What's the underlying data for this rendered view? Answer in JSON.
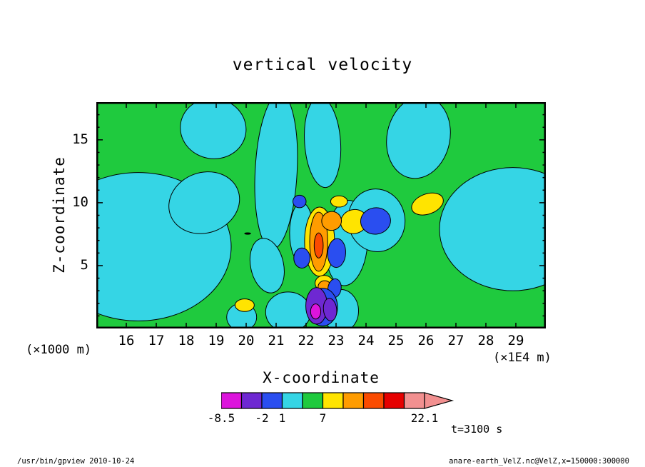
{
  "footer": {
    "left": "/usr/bin/gpview  2010-10-24",
    "right": "anare-earth_VelZ.nc@VelZ,x=150000:300000"
  },
  "chart_data": {
    "type": "heatmap",
    "subtype": "filled-contour-vertical-section",
    "title": "vertical velocity",
    "xlabel": "X-coordinate",
    "x_unit": "(×1E4 m)",
    "ylabel": "Z-coordinate",
    "y_unit": "(×1000 m)",
    "annotation_time": "t=3100 s",
    "xlim": [
      15,
      30
    ],
    "ylim": [
      0,
      18
    ],
    "x_ticks": [
      16,
      17,
      18,
      19,
      20,
      21,
      22,
      23,
      24,
      25,
      26,
      27,
      28,
      29
    ],
    "y_ticks": [
      5,
      10,
      15
    ],
    "contour_levels": [
      -8.5,
      -5,
      -2,
      1,
      4,
      7,
      10,
      13,
      16,
      19,
      22.1
    ],
    "field_background_color": "#1fca3e",
    "field_background_value_range": [
      4,
      7
    ],
    "colorbar": {
      "segments": [
        {
          "from": -8.5,
          "to": -5,
          "color": "#dc14dc"
        },
        {
          "from": -5,
          "to": -2,
          "color": "#6e28d2"
        },
        {
          "from": -2,
          "to": 1,
          "color": "#2a4ef0"
        },
        {
          "from": 1,
          "to": 4,
          "color": "#35d5e5"
        },
        {
          "from": 4,
          "to": 7,
          "color": "#1fca3e"
        },
        {
          "from": 7,
          "to": 10,
          "color": "#ffe400"
        },
        {
          "from": 10,
          "to": 13,
          "color": "#ff9c00"
        },
        {
          "from": 13,
          "to": 16,
          "color": "#fb4b00"
        },
        {
          "from": 16,
          "to": 19,
          "color": "#e60000"
        },
        {
          "from": 19,
          "to": 22.1,
          "color": "#f29090"
        }
      ],
      "arrow_color": "#f29090",
      "labels": [
        {
          "text": "-8.5",
          "frac": 0.0
        },
        {
          "text": "-2",
          "frac": 0.2
        },
        {
          "text": "1",
          "frac": 0.3
        },
        {
          "text": "7",
          "frac": 0.5
        },
        {
          "text": "22.1",
          "frac": 1.0
        }
      ]
    },
    "regions": [
      {
        "name": "cyan-left-flank",
        "color": "#35d5e5",
        "cx": 16.4,
        "cz": 6.5,
        "rx": 3.1,
        "rz": 5.9,
        "rot": 0
      },
      {
        "name": "cyan-left-upper",
        "color": "#35d5e5",
        "cx": 18.6,
        "cz": 10.0,
        "rx": 1.2,
        "rz": 2.4,
        "rot": -20
      },
      {
        "name": "cyan-top-left",
        "color": "#35d5e5",
        "cx": 18.9,
        "cz": 15.9,
        "rx": 1.1,
        "rz": 2.4,
        "rot": 10
      },
      {
        "name": "cyan-top-column",
        "color": "#35d5e5",
        "cx": 21.0,
        "cz": 12.5,
        "rx": 0.7,
        "rz": 6.2,
        "rot": 3
      },
      {
        "name": "cyan-column-tail",
        "color": "#35d5e5",
        "cx": 20.7,
        "cz": 5.0,
        "rx": 0.55,
        "rz": 2.2,
        "rot": -12
      },
      {
        "name": "cyan-top-column-2",
        "color": "#35d5e5",
        "cx": 22.55,
        "cz": 14.8,
        "rx": 0.6,
        "rz": 3.6,
        "rot": -4
      },
      {
        "name": "cyan-mid-column",
        "color": "#35d5e5",
        "cx": 23.35,
        "cz": 6.8,
        "rx": 0.7,
        "rz": 3.4,
        "rot": 4
      },
      {
        "name": "cyan-blue-halo",
        "color": "#35d5e5",
        "cx": 24.35,
        "cz": 8.6,
        "rx": 0.95,
        "rz": 2.5,
        "rot": -8
      },
      {
        "name": "cyan-top-right",
        "color": "#35d5e5",
        "cx": 25.75,
        "cz": 15.2,
        "rx": 1.05,
        "rz": 3.3,
        "rot": 12
      },
      {
        "name": "cyan-right-flank",
        "color": "#35d5e5",
        "cx": 28.9,
        "cz": 7.9,
        "rx": 2.45,
        "rz": 4.9,
        "rot": 0
      },
      {
        "name": "cyan-bottom-a",
        "color": "#35d5e5",
        "cx": 21.4,
        "cz": 1.3,
        "rx": 0.75,
        "rz": 1.6,
        "rot": 0
      },
      {
        "name": "cyan-bottom-b",
        "color": "#35d5e5",
        "cx": 23.15,
        "cz": 1.4,
        "rx": 0.6,
        "rz": 1.7,
        "rot": 0
      },
      {
        "name": "cyan-center-band",
        "color": "#35d5e5",
        "cx": 21.85,
        "cz": 7.6,
        "rx": 0.4,
        "rz": 2.4,
        "rot": 0
      },
      {
        "name": "cyan-bottom-c",
        "color": "#35d5e5",
        "cx": 19.85,
        "cz": 0.9,
        "rx": 0.5,
        "rz": 1.1,
        "rot": 0
      },
      {
        "name": "yellow-column-halo",
        "color": "#ffe400",
        "cx": 22.45,
        "cz": 6.9,
        "rx": 0.5,
        "rz": 2.75,
        "rot": 0
      },
      {
        "name": "yellow-right-patch",
        "color": "#ffe400",
        "cx": 23.6,
        "cz": 8.5,
        "rx": 0.45,
        "rz": 0.95,
        "rot": -15
      },
      {
        "name": "yellow-lone-ellipse",
        "color": "#ffe400",
        "cx": 26.05,
        "cz": 9.9,
        "rx": 0.55,
        "rz": 0.8,
        "rot": -20
      },
      {
        "name": "yellow-small-left",
        "color": "#ffe400",
        "cx": 19.95,
        "cz": 1.85,
        "rx": 0.32,
        "rz": 0.5,
        "rot": 0
      },
      {
        "name": "yellow-small-upper",
        "color": "#ffe400",
        "cx": 23.1,
        "cz": 10.1,
        "rx": 0.28,
        "rz": 0.45,
        "rot": 0
      },
      {
        "name": "yellow-small-lower",
        "color": "#ffe400",
        "cx": 22.6,
        "cz": 3.6,
        "rx": 0.3,
        "rz": 0.62,
        "rot": 0
      },
      {
        "name": "orange-column",
        "color": "#ff9c00",
        "cx": 22.42,
        "cz": 6.9,
        "rx": 0.3,
        "rz": 2.35,
        "rot": 0
      },
      {
        "name": "orange-bump",
        "color": "#ff9c00",
        "cx": 22.85,
        "cz": 8.55,
        "rx": 0.33,
        "rz": 0.75,
        "rot": -10
      },
      {
        "name": "orange-lower",
        "color": "#ff9c00",
        "cx": 22.62,
        "cz": 3.3,
        "rx": 0.22,
        "rz": 0.5,
        "rot": 0
      },
      {
        "name": "redorange-core",
        "color": "#fb4b00",
        "cx": 22.42,
        "cz": 6.6,
        "rx": 0.15,
        "rz": 1.0,
        "rot": 0
      },
      {
        "name": "blue-royal",
        "color": "#2a4ef0",
        "cx": 24.32,
        "cz": 8.55,
        "rx": 0.5,
        "rz": 1.05,
        "rot": -8
      },
      {
        "name": "blue-mid",
        "color": "#2a4ef0",
        "cx": 23.02,
        "cz": 6.0,
        "rx": 0.3,
        "rz": 1.15,
        "rot": 3
      },
      {
        "name": "blue-left",
        "color": "#2a4ef0",
        "cx": 21.86,
        "cz": 5.6,
        "rx": 0.27,
        "rz": 0.8,
        "rot": 0
      },
      {
        "name": "blue-upper-dot",
        "color": "#2a4ef0",
        "cx": 21.78,
        "cz": 10.1,
        "rx": 0.22,
        "rz": 0.5,
        "rot": 0
      },
      {
        "name": "blue-lower-streak",
        "color": "#2a4ef0",
        "cx": 22.95,
        "cz": 3.2,
        "rx": 0.22,
        "rz": 0.75,
        "rot": 8
      },
      {
        "name": "blue-bottom-halo",
        "color": "#2a4ef0",
        "cx": 22.55,
        "cz": 1.7,
        "rx": 0.5,
        "rz": 1.5,
        "rot": 0
      },
      {
        "name": "violet-bottom",
        "color": "#6e28d2",
        "cx": 22.35,
        "cz": 1.8,
        "rx": 0.36,
        "rz": 1.45,
        "rot": 0
      },
      {
        "name": "violet-bottom-2",
        "color": "#6e28d2",
        "cx": 22.8,
        "cz": 1.5,
        "rx": 0.22,
        "rz": 0.9,
        "rot": -6
      },
      {
        "name": "magenta-core",
        "color": "#dc14dc",
        "cx": 22.32,
        "cz": 1.35,
        "rx": 0.17,
        "rz": 0.6,
        "rot": 0
      },
      {
        "name": "black-dash",
        "color": "#000000",
        "cx": 20.05,
        "cz": 7.55,
        "rx": 0.1,
        "rz": 0.06,
        "rot": 0
      }
    ]
  }
}
